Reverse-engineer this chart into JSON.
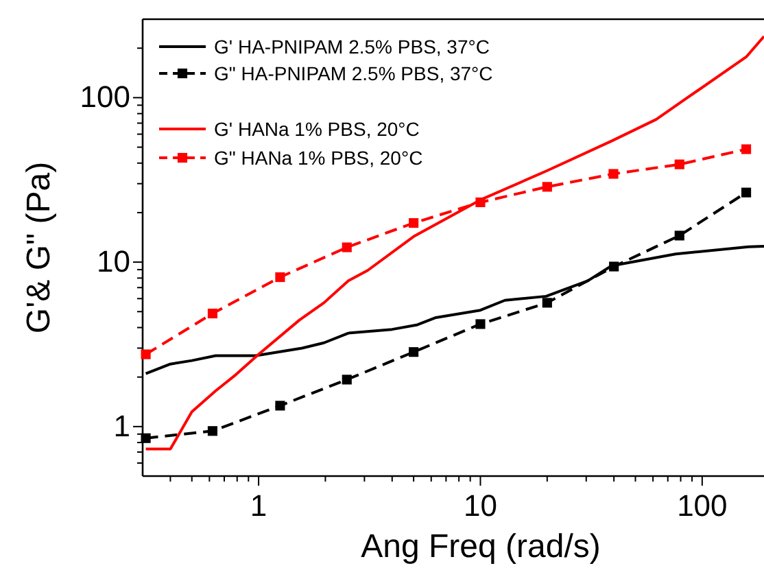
{
  "chart_data": {
    "type": "line",
    "xlabel": "Ang Freq (rad/s)",
    "ylabel": "G'& G\" (Pa)",
    "log": "xy",
    "legend": "top left",
    "grid": false,
    "xlim": [
      0.3,
      190
    ],
    "ylim": [
      0.5,
      300
    ],
    "xticks": [
      {
        "value": 0.4,
        "label": null
      },
      {
        "value": 0.5,
        "label": null
      },
      {
        "value": 0.6,
        "label": null
      },
      {
        "value": 0.7,
        "label": null
      },
      {
        "value": 0.8,
        "label": null
      },
      {
        "value": 0.9,
        "label": null
      },
      1,
      {
        "value": 2,
        "label": null
      },
      {
        "value": 3,
        "label": null
      },
      {
        "value": 4,
        "label": null
      },
      {
        "value": 5,
        "label": null
      },
      {
        "value": 6,
        "label": null
      },
      {
        "value": 7,
        "label": null
      },
      {
        "value": 8,
        "label": null
      },
      {
        "value": 9,
        "label": null
      },
      10,
      {
        "value": 20,
        "label": null
      },
      {
        "value": 30,
        "label": null
      },
      {
        "value": 40,
        "label": null
      },
      {
        "value": 50,
        "label": null
      },
      {
        "value": 60,
        "label": null
      },
      {
        "value": 70,
        "label": null
      },
      {
        "value": 80,
        "label": null
      },
      {
        "value": 90,
        "label": null
      },
      100
    ],
    "yticks": [
      {
        "value": 0.6,
        "label": null
      },
      {
        "value": 0.7,
        "label": null
      },
      {
        "value": 0.8,
        "label": null
      },
      {
        "value": 0.9,
        "label": null
      },
      1,
      {
        "value": 2,
        "label": null
      },
      {
        "value": 3,
        "label": null
      },
      {
        "value": 4,
        "label": null
      },
      {
        "value": 5,
        "label": null
      },
      {
        "value": 6,
        "label": null
      },
      {
        "value": 7,
        "label": null
      },
      {
        "value": 8,
        "label": null
      },
      {
        "value": 9,
        "label": null
      },
      10,
      {
        "value": 20,
        "label": null
      },
      {
        "value": 30,
        "label": null
      },
      {
        "value": 40,
        "label": null
      },
      {
        "value": 50,
        "label": null
      },
      {
        "value": 60,
        "label": null
      },
      {
        "value": 70,
        "label": null
      },
      {
        "value": 80,
        "label": null
      },
      {
        "value": 90,
        "label": null
      },
      100,
      {
        "value": 200,
        "label": null
      }
    ],
    "series": [
      {
        "name": "G' HA-PNIPAM 2.5% PBS, 37°C",
        "color": "#000000",
        "marker": "none",
        "line_style": "solid",
        "x": [
          0.31,
          0.4,
          0.5,
          0.64,
          0.97,
          1.57,
          1.97,
          2.54,
          4,
          5.2,
          6.3,
          10,
          12.9,
          19.8,
          30.5,
          39,
          76,
          162,
          190
        ],
        "values": [
          2.1,
          2.4,
          2.52,
          2.7,
          2.7,
          3.0,
          3.23,
          3.7,
          3.9,
          4.16,
          4.6,
          5.1,
          5.86,
          6.2,
          7.7,
          9.5,
          11.2,
          12.4,
          12.5
        ]
      },
      {
        "name": "G\" HA-PNIPAM 2.5% PBS, 37°C",
        "color": "#000000",
        "marker": "square",
        "line_style": "dashed",
        "x": [
          0.31,
          0.62,
          1.25,
          2.5,
          5,
          10,
          20,
          40,
          79,
          158
        ],
        "values": [
          0.85,
          0.94,
          1.34,
          1.93,
          2.84,
          4.2,
          5.66,
          9.4,
          14.5,
          26.5
        ]
      },
      {
        "name": "G' HANa 1% PBS, 20°C",
        "color": "#ff0000",
        "marker": "none",
        "line_style": "solid",
        "x": [
          0.31,
          0.4,
          0.5,
          0.64,
          0.79,
          1.0,
          1.53,
          1.97,
          2.54,
          3.1,
          5,
          10,
          20,
          39,
          62,
          84,
          158,
          190
        ],
        "values": [
          0.73,
          0.73,
          1.23,
          1.65,
          2.07,
          2.75,
          4.45,
          5.66,
          7.7,
          8.9,
          14.3,
          23.9,
          36,
          54.5,
          73.7,
          98,
          177,
          236
        ]
      },
      {
        "name": "G\" HANa 1% PBS, 20°C",
        "color": "#ff0000",
        "marker": "square",
        "line_style": "dashed",
        "x": [
          0.31,
          0.62,
          1.25,
          2.5,
          5,
          10,
          20,
          39.8,
          79,
          158
        ],
        "values": [
          2.75,
          4.87,
          8.1,
          12.3,
          17.3,
          23.1,
          28.7,
          34.4,
          39.3,
          48.6
        ]
      }
    ]
  }
}
